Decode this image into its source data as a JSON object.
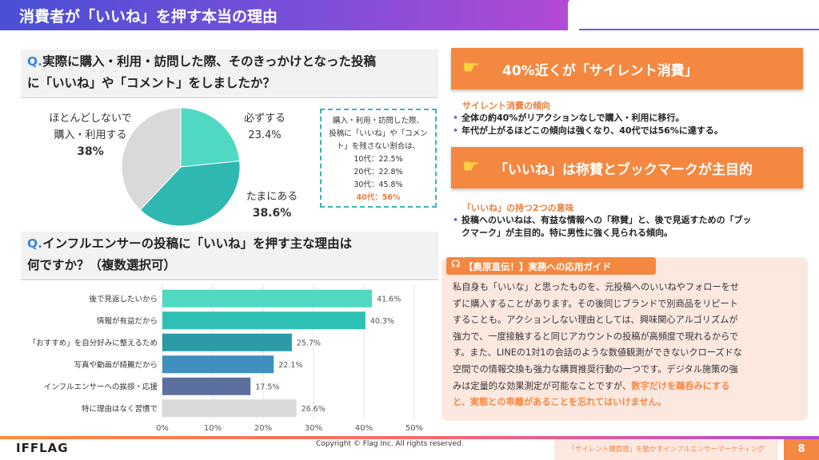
{
  "header": {
    "title": "消費者が「いいね」を押す本当の理由"
  },
  "q1": {
    "prefix": "Q.",
    "line1": "実際に購入・利用・訪問した際、そのきっかけとなった投稿",
    "line2": "に「いいね」や「コメント」をしましたか？"
  },
  "pie": {
    "slices": [
      {
        "label": "必ずする",
        "value": 23.4,
        "value_text": "23.4%",
        "color": "#4fd9c3"
      },
      {
        "label": "たまにある",
        "value": 38.6,
        "value_text": "38.6%",
        "color": "#2fb8b2"
      },
      {
        "label": "ほとんどしないで購入・利用する",
        "value": 38.0,
        "value_text": "38%",
        "color": "#d9d9d9"
      }
    ],
    "label_never_l1": "ほとんどしないで",
    "label_never_l2": "購入・利用する"
  },
  "dashed_box": {
    "l1": "購入・利用・訪問した際、",
    "l2": "投稿に「いいね」や「コメン",
    "l3": "ト」を残さない割合は、",
    "l4": "10代：22.5%",
    "l5": "20代：22.8%",
    "l6": "30代：45.8%",
    "l7": "40代：56%"
  },
  "q2": {
    "prefix": "Q.",
    "line1": "インフルエンサーの投稿に「いいね」を押す主な理由は",
    "line2": "何ですか？（複数選択可）"
  },
  "chart_data": {
    "type": "bar",
    "orientation": "horizontal",
    "categories": [
      "後で見返したいから",
      "情報が有益だから",
      "「おすすめ」を自分好みに整えるため",
      "写真や動画が綺麗だから",
      "インフルエンサーへの挨拶・応援",
      "特に理由はなく習慣で"
    ],
    "values": [
      41.6,
      40.3,
      25.7,
      22.1,
      17.5,
      26.6
    ],
    "value_labels": [
      "41.6%",
      "40.3%",
      "25.7%",
      "22.1%",
      "17.5%",
      "26.6%"
    ],
    "colors": [
      "#4fd9c3",
      "#2fc0b5",
      "#2a9aa6",
      "#3f8fbf",
      "#5c6f9e",
      "#d9d9d9"
    ],
    "xlim": [
      0,
      50
    ],
    "xticks": [
      "0%",
      "10%",
      "20%",
      "30%",
      "40%",
      "50%"
    ],
    "grid": true
  },
  "right": {
    "banner1": "40%近くが「サイレント消費」",
    "sub1": "サイレント消費の傾向",
    "b1_1": "全体の約40%がリアクションなしで購入・利用に移行。",
    "b1_2": "年代が上がるほどこの傾向は強くなり、40代では56%に達する。",
    "banner2": "「いいね」は称賛とブックマークが主目的",
    "sub2": "「いいね」の持つ2つの意味",
    "b2_l1": "投稿へのいいねは、有益な情報への「称賛」と、後で見返すための「ブッ",
    "b2_l2": "クマーク」が主目的。特に男性に強く見られる傾向。",
    "hand_icon": "pointing-hand-icon"
  },
  "guide": {
    "tag": "【奥原直伝！】実務への応用ガイド",
    "l1": "私自身も「いいな」と思ったものを、元投稿へのいいねやフォローをせ",
    "l2": "ずに購入することがあります。その後同じブランドで別商品をリピート",
    "l3": "することも。アクションしない理由としては、興味関心アルゴリズムが",
    "l4": "強力で、一度接触すると同じアカウントの投稿が高頻度で現れるからで",
    "l5": "す。また、LINEの1対1の会話のような数値観測ができないクローズドな",
    "l6": "空間での情報交換も強力な購買推奨行動の一つです。デジタル施策の強",
    "l7a": "みは定量的な効果測定が可能なことですが、",
    "l7b": "数字だけを鵜呑みにする",
    "l8": "と、実態との乖離があることを忘れてはいけません。"
  },
  "footer": {
    "logo": "IFFLAG",
    "copyright": "Copyright © Flag Inc. All rights reserved.",
    "tag": "「サイレント購買層」を動かすインフルエンサーマーケティング",
    "page": "8"
  }
}
